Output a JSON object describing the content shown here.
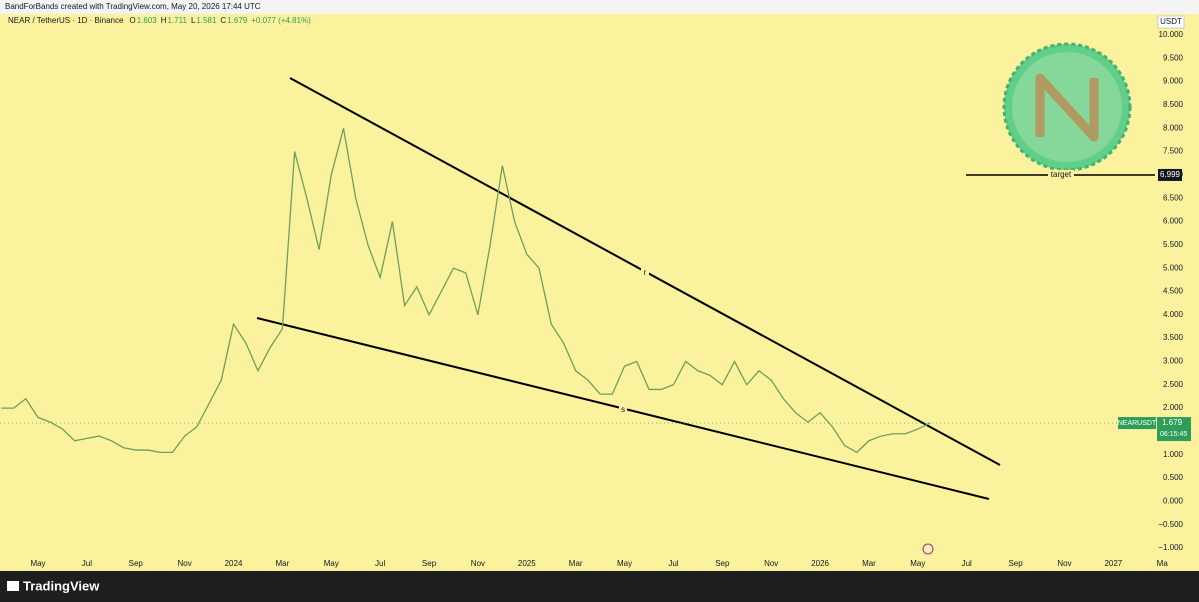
{
  "header": {
    "credit": "BandForBands created with TradingView.com, May 20, 2026 17:44 UTC"
  },
  "legend": {
    "symbol": "NEAR / TetherUS · 1D · Binance",
    "ohlc": [
      {
        "label": "O",
        "value": 1.603
      },
      {
        "label": "H",
        "value": 1.711
      },
      {
        "label": "L",
        "value": 1.581
      },
      {
        "label": "C",
        "value": 1.679
      }
    ],
    "change": "+0.077 (+4.81%)"
  },
  "footer": {
    "brand": "TradingView"
  },
  "chart_data": {
    "type": "line",
    "currency": "USDT",
    "categories": [
      null,
      null,
      null,
      "May",
      null,
      null,
      null,
      "Jul",
      null,
      null,
      null,
      "Sep",
      null,
      null,
      null,
      "Nov",
      null,
      null,
      null,
      "2024",
      null,
      null,
      null,
      "Mar",
      null,
      null,
      null,
      "May",
      null,
      null,
      null,
      "Jul",
      null,
      null,
      null,
      "Sep",
      null,
      null,
      null,
      "Nov",
      null,
      null,
      null,
      "2025",
      null,
      null,
      null,
      "Mar",
      null,
      null,
      null,
      "May",
      null,
      null,
      null,
      "Jul",
      null,
      null,
      null,
      "Sep",
      null,
      null,
      null,
      "Nov",
      null,
      null,
      null,
      "2026",
      null,
      null,
      null,
      "Mar",
      null,
      null,
      null,
      "May",
      null,
      null,
      null,
      "Jul",
      null,
      null,
      null,
      "Sep",
      null,
      null,
      null,
      "Nov",
      null,
      null,
      null,
      "2027",
      null,
      null,
      null,
      "Ma",
      null
    ],
    "series": [
      {
        "name": "NEARUSDT",
        "color": "#6f9f5a",
        "values": [
          2.0,
          2.0,
          2.2,
          1.8,
          1.7,
          1.55,
          1.3,
          1.35,
          1.4,
          1.3,
          1.15,
          1.1,
          1.1,
          1.05,
          1.05,
          1.4,
          1.6,
          2.1,
          2.6,
          3.8,
          3.4,
          2.8,
          3.3,
          3.7,
          7.5,
          6.5,
          5.4,
          7.0,
          8.0,
          6.5,
          5.5,
          4.8,
          6.0,
          4.2,
          4.6,
          4.0,
          4.5,
          5.0,
          4.9,
          4.0,
          5.5,
          7.2,
          6.0,
          5.3,
          5.0,
          3.8,
          3.4,
          2.8,
          2.6,
          2.3,
          2.3,
          2.9,
          3.0,
          2.4,
          2.4,
          2.5,
          3.0,
          2.8,
          2.7,
          2.5,
          3.0,
          2.5,
          2.8,
          2.6,
          2.2,
          1.9,
          1.7,
          1.9,
          1.6,
          1.2,
          1.05,
          1.3,
          1.4,
          1.45,
          1.45,
          1.55,
          1.679,
          null,
          null,
          null,
          null,
          null,
          null,
          null,
          null,
          null,
          null,
          null,
          null,
          null,
          null,
          null,
          null,
          null,
          null,
          null,
          null
        ]
      }
    ],
    "last_price": {
      "symbol": "NEARUSDT",
      "value": 1.679,
      "countdown": "06:15:45"
    },
    "target": {
      "label": "target",
      "value": 6.999
    },
    "line_labels": [
      "r",
      "s"
    ],
    "ylim": [
      -1.25,
      10.35
    ],
    "yticks": [
      {
        "value": 10,
        "label": "10.000"
      },
      {
        "value": 9.5,
        "label": "9.500"
      },
      {
        "value": 9,
        "label": "9.000"
      },
      {
        "value": 8.5,
        "label": "8.500"
      },
      {
        "value": 8,
        "label": "8.000"
      },
      {
        "value": 7.5,
        "label": "7.500"
      },
      {
        "value": 7,
        "label": "7.000"
      },
      {
        "value": 6.5,
        "label": "6.500"
      },
      {
        "value": 6,
        "label": "6.000"
      },
      {
        "value": 5.5,
        "label": "5.500"
      },
      {
        "value": 5,
        "label": "5.000"
      },
      {
        "value": 4.5,
        "label": "4.500"
      },
      {
        "value": 4,
        "label": "4.000"
      },
      {
        "value": 3.5,
        "label": "3.500"
      },
      {
        "value": 3,
        "label": "3.000"
      },
      {
        "value": 2.5,
        "label": "2.500"
      },
      {
        "value": 2,
        "label": "2.000"
      },
      {
        "value": 1.5,
        "label": "1.500"
      },
      {
        "value": 1,
        "label": "1.000"
      },
      {
        "value": 0.5,
        "label": "0.500"
      },
      {
        "value": 0,
        "label": "0.000"
      },
      {
        "value": -0.5,
        "label": "−0.500"
      },
      {
        "value": -1,
        "label": "−1.000"
      }
    ]
  }
}
